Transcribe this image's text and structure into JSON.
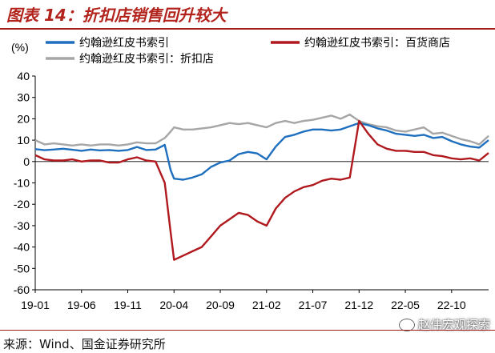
{
  "figure_title": "图表 14：折扣店销售回升较大",
  "source_note": "来源：Wind、国金证券研究所",
  "watermark": "赵伟宏观探索",
  "colors": {
    "series_main": "#1f6fbf",
    "series_department": "#b0191e",
    "series_discount": "#a6a6a6",
    "title": "#b2231c"
  },
  "chart_data": {
    "type": "line",
    "ylabel": "(%)",
    "ylim": [
      -60,
      40
    ],
    "yticks": [
      -60,
      -50,
      -40,
      -30,
      -20,
      -10,
      0,
      10,
      20,
      30,
      40
    ],
    "xlim": [
      "2019-01",
      "2023-02"
    ],
    "xticks": [
      {
        "label": "19-01",
        "x": "2019-01"
      },
      {
        "label": "19-06",
        "x": "2019-06"
      },
      {
        "label": "19-11",
        "x": "2019-11"
      },
      {
        "label": "20-04",
        "x": "2020-04"
      },
      {
        "label": "20-09",
        "x": "2020-09"
      },
      {
        "label": "21-02",
        "x": "2021-02"
      },
      {
        "label": "21-07",
        "x": "2021-07"
      },
      {
        "label": "21-12",
        "x": "2021-12"
      },
      {
        "label": "22-05",
        "x": "2022-05"
      },
      {
        "label": "22-10",
        "x": "2022-10"
      }
    ],
    "grid": false,
    "legend_position": "top",
    "series": [
      {
        "name": "约翰逊红皮书索引",
        "color": "#1f6fbf",
        "points": [
          [
            "2019-01",
            5.8
          ],
          [
            "2019-02",
            5.3
          ],
          [
            "2019-03",
            5.6
          ],
          [
            "2019-04",
            6.0
          ],
          [
            "2019-05",
            5.5
          ],
          [
            "2019-06",
            5.0
          ],
          [
            "2019-07",
            5.6
          ],
          [
            "2019-08",
            5.2
          ],
          [
            "2019-09",
            5.4
          ],
          [
            "2019-10",
            5.0
          ],
          [
            "2019-11",
            5.4
          ],
          [
            "2019-12",
            6.8
          ],
          [
            "2020-01",
            5.4
          ],
          [
            "2020-02",
            5.6
          ],
          [
            "2020-03",
            7.8
          ],
          [
            "2020-03-20",
            -4.0
          ],
          [
            "2020-04",
            -8.0
          ],
          [
            "2020-05",
            -8.5
          ],
          [
            "2020-06",
            -7.5
          ],
          [
            "2020-07",
            -6.0
          ],
          [
            "2020-08",
            -2.5
          ],
          [
            "2020-09",
            -0.5
          ],
          [
            "2020-10",
            0.5
          ],
          [
            "2020-11",
            3.5
          ],
          [
            "2020-12",
            4.5
          ],
          [
            "2021-01",
            3.8
          ],
          [
            "2021-02",
            1.0
          ],
          [
            "2021-03",
            7.0
          ],
          [
            "2021-04",
            11.5
          ],
          [
            "2021-05",
            12.5
          ],
          [
            "2021-06",
            14.0
          ],
          [
            "2021-07",
            15.0
          ],
          [
            "2021-08",
            15.0
          ],
          [
            "2021-09",
            14.5
          ],
          [
            "2021-10",
            15.0
          ],
          [
            "2021-11",
            16.5
          ],
          [
            "2021-12",
            18.0
          ],
          [
            "2022-01",
            17.0
          ],
          [
            "2022-02",
            15.5
          ],
          [
            "2022-03",
            14.5
          ],
          [
            "2022-04",
            13.0
          ],
          [
            "2022-05",
            12.5
          ],
          [
            "2022-06",
            12.0
          ],
          [
            "2022-07",
            12.5
          ],
          [
            "2022-08",
            11.0
          ],
          [
            "2022-09",
            11.5
          ],
          [
            "2022-10",
            9.5
          ],
          [
            "2022-11",
            8.0
          ],
          [
            "2022-12",
            7.0
          ],
          [
            "2023-01",
            6.5
          ],
          [
            "2023-02",
            10.0
          ]
        ]
      },
      {
        "name": "约翰逊红皮书索引：百货商店",
        "color": "#b0191e",
        "points": [
          [
            "2019-01",
            3.0
          ],
          [
            "2019-02",
            1.0
          ],
          [
            "2019-03",
            0.5
          ],
          [
            "2019-04",
            0.5
          ],
          [
            "2019-05",
            1.0
          ],
          [
            "2019-06",
            0.0
          ],
          [
            "2019-07",
            0.5
          ],
          [
            "2019-08",
            0.5
          ],
          [
            "2019-09",
            -0.5
          ],
          [
            "2019-10",
            -0.5
          ],
          [
            "2019-11",
            1.0
          ],
          [
            "2019-12",
            2.0
          ],
          [
            "2020-01",
            0.5
          ],
          [
            "2020-02",
            0.0
          ],
          [
            "2020-03",
            -10.0
          ],
          [
            "2020-03-20",
            -33.0
          ],
          [
            "2020-04",
            -46.0
          ],
          [
            "2020-05",
            -44.0
          ],
          [
            "2020-06",
            -42.0
          ],
          [
            "2020-07",
            -40.0
          ],
          [
            "2020-08",
            -35.0
          ],
          [
            "2020-09",
            -30.0
          ],
          [
            "2020-10",
            -27.0
          ],
          [
            "2020-11",
            -24.0
          ],
          [
            "2020-12",
            -25.0
          ],
          [
            "2021-01",
            -28.0
          ],
          [
            "2021-02",
            -30.0
          ],
          [
            "2021-03",
            -22.0
          ],
          [
            "2021-04",
            -17.0
          ],
          [
            "2021-05",
            -14.0
          ],
          [
            "2021-06",
            -12.0
          ],
          [
            "2021-07",
            -11.0
          ],
          [
            "2021-08",
            -9.0
          ],
          [
            "2021-09",
            -8.0
          ],
          [
            "2021-10",
            -8.5
          ],
          [
            "2021-11",
            -7.5
          ],
          [
            "2021-12",
            19.0
          ],
          [
            "2022-01",
            13.0
          ],
          [
            "2022-02",
            8.0
          ],
          [
            "2022-03",
            6.0
          ],
          [
            "2022-04",
            5.0
          ],
          [
            "2022-05",
            5.0
          ],
          [
            "2022-06",
            4.5
          ],
          [
            "2022-07",
            4.5
          ],
          [
            "2022-08",
            3.0
          ],
          [
            "2022-09",
            2.5
          ],
          [
            "2022-10",
            1.5
          ],
          [
            "2022-11",
            1.0
          ],
          [
            "2022-12",
            1.5
          ],
          [
            "2023-01",
            0.5
          ],
          [
            "2023-02",
            4.0
          ]
        ]
      },
      {
        "name": "约翰逊红皮书索引：折扣店",
        "color": "#a6a6a6",
        "points": [
          [
            "2019-01",
            10.0
          ],
          [
            "2019-02",
            8.0
          ],
          [
            "2019-03",
            8.5
          ],
          [
            "2019-04",
            8.0
          ],
          [
            "2019-05",
            7.5
          ],
          [
            "2019-06",
            8.0
          ],
          [
            "2019-07",
            7.5
          ],
          [
            "2019-08",
            8.0
          ],
          [
            "2019-09",
            8.0
          ],
          [
            "2019-10",
            7.5
          ],
          [
            "2019-11",
            8.0
          ],
          [
            "2019-12",
            9.0
          ],
          [
            "2020-01",
            8.5
          ],
          [
            "2020-02",
            8.5
          ],
          [
            "2020-03",
            11.0
          ],
          [
            "2020-03-20",
            14.0
          ],
          [
            "2020-04",
            16.0
          ],
          [
            "2020-05",
            15.0
          ],
          [
            "2020-06",
            15.0
          ],
          [
            "2020-07",
            15.5
          ],
          [
            "2020-08",
            16.0
          ],
          [
            "2020-09",
            17.0
          ],
          [
            "2020-10",
            18.0
          ],
          [
            "2020-11",
            17.5
          ],
          [
            "2020-12",
            18.0
          ],
          [
            "2021-01",
            17.0
          ],
          [
            "2021-02",
            16.0
          ],
          [
            "2021-03",
            18.0
          ],
          [
            "2021-04",
            19.0
          ],
          [
            "2021-05",
            18.0
          ],
          [
            "2021-06",
            19.0
          ],
          [
            "2021-07",
            19.5
          ],
          [
            "2021-08",
            20.5
          ],
          [
            "2021-09",
            21.5
          ],
          [
            "2021-10",
            20.0
          ],
          [
            "2021-11",
            22.0
          ],
          [
            "2021-12",
            19.0
          ],
          [
            "2022-01",
            17.5
          ],
          [
            "2022-02",
            16.5
          ],
          [
            "2022-03",
            16.0
          ],
          [
            "2022-04",
            14.5
          ],
          [
            "2022-05",
            14.0
          ],
          [
            "2022-06",
            15.0
          ],
          [
            "2022-07",
            16.0
          ],
          [
            "2022-08",
            13.0
          ],
          [
            "2022-09",
            13.5
          ],
          [
            "2022-10",
            12.0
          ],
          [
            "2022-11",
            10.5
          ],
          [
            "2022-12",
            9.5
          ],
          [
            "2023-01",
            8.0
          ],
          [
            "2023-02",
            12.0
          ]
        ]
      }
    ]
  }
}
